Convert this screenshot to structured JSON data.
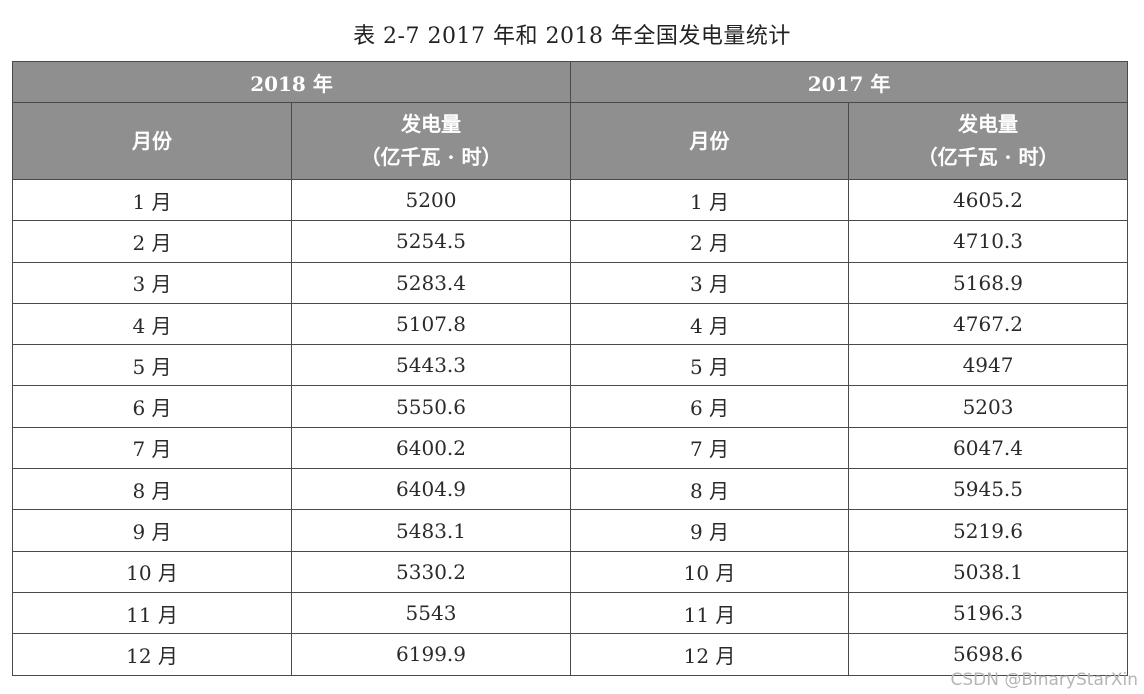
{
  "caption": "表 2-7   2017 年和 2018 年全国发电量统计",
  "table": {
    "groups": [
      {
        "year": "2018 年",
        "month_header": "月份",
        "value_header": "发电量",
        "value_unit": "（亿千瓦 · 时）"
      },
      {
        "year": "2017 年",
        "month_header": "月份",
        "value_header": "发电量",
        "value_unit": "（亿千瓦 · 时）"
      }
    ],
    "rows": [
      {
        "month_2018": "1 月",
        "value_2018": "5200",
        "month_2017": "1 月",
        "value_2017": "4605.2"
      },
      {
        "month_2018": "2 月",
        "value_2018": "5254.5",
        "month_2017": "2 月",
        "value_2017": "4710.3"
      },
      {
        "month_2018": "3 月",
        "value_2018": "5283.4",
        "month_2017": "3 月",
        "value_2017": "5168.9"
      },
      {
        "month_2018": "4 月",
        "value_2018": "5107.8",
        "month_2017": "4 月",
        "value_2017": "4767.2"
      },
      {
        "month_2018": "5 月",
        "value_2018": "5443.3",
        "month_2017": "5 月",
        "value_2017": "4947"
      },
      {
        "month_2018": "6 月",
        "value_2018": "5550.6",
        "month_2017": "6 月",
        "value_2017": "5203"
      },
      {
        "month_2018": "7 月",
        "value_2018": "6400.2",
        "month_2017": "7 月",
        "value_2017": "6047.4"
      },
      {
        "month_2018": "8 月",
        "value_2018": "6404.9",
        "month_2017": "8 月",
        "value_2017": "5945.5"
      },
      {
        "month_2018": "9 月",
        "value_2018": "5483.1",
        "month_2017": "9 月",
        "value_2017": "5219.6"
      },
      {
        "month_2018": "10 月",
        "value_2018": "5330.2",
        "month_2017": "10 月",
        "value_2017": "5038.1"
      },
      {
        "month_2018": "11 月",
        "value_2018": "5543",
        "month_2017": "11 月",
        "value_2017": "5196.3"
      },
      {
        "month_2018": "12 月",
        "value_2018": "6199.9",
        "month_2017": "12 月",
        "value_2017": "5698.6"
      }
    ]
  },
  "watermark": "CSDN @BinaryStarXin",
  "colors": {
    "header_bg": "#8f8f8f",
    "header_text": "#ffffff",
    "border": "#4a4a4a"
  }
}
